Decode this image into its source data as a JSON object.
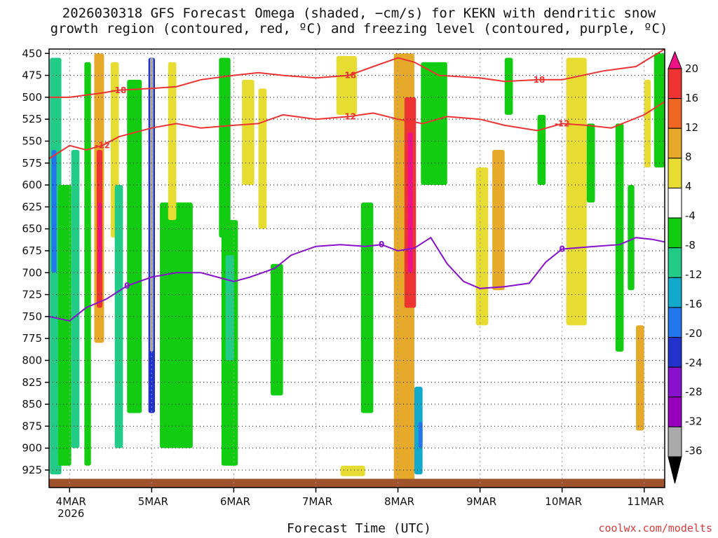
{
  "title": {
    "line1": "2026030318 GFS Forecast Omega (shaded, −cm/s) for KEKN with dendritic snow",
    "line2": "growth region (contoured, red, ºC) and freezing level (contoured, purple, ºC)"
  },
  "xlabel": "Forecast Time (UTC)",
  "credit": "coolwx.com/modelts",
  "chart_data": {
    "type": "heatmap",
    "title": "2026030318 GFS Forecast Omega (shaded, −cm/s) for KEKN",
    "x_axis": {
      "range_days": [
        3.75,
        11.25
      ],
      "ticks": [
        {
          "day": 4,
          "label": "4MAR",
          "sub": "2026"
        },
        {
          "day": 5,
          "label": "5MAR",
          "sub": ""
        },
        {
          "day": 6,
          "label": "6MAR",
          "sub": ""
        },
        {
          "day": 7,
          "label": "7MAR",
          "sub": ""
        },
        {
          "day": 8,
          "label": "8MAR",
          "sub": ""
        },
        {
          "day": 9,
          "label": "9MAR",
          "sub": ""
        },
        {
          "day": 10,
          "label": "10MAR",
          "sub": ""
        },
        {
          "day": 11,
          "label": "11MAR",
          "sub": ""
        }
      ]
    },
    "y_axis": {
      "label": "",
      "range_hpa": [
        445,
        945
      ],
      "ticks": [
        450,
        475,
        500,
        525,
        550,
        575,
        600,
        625,
        650,
        675,
        700,
        725,
        750,
        775,
        800,
        825,
        850,
        875,
        900,
        925
      ]
    },
    "grid": true,
    "colorbar": {
      "labels": [
        20,
        16,
        12,
        8,
        4,
        -4,
        -8,
        -12,
        -16,
        -20,
        -24,
        -28,
        -32,
        -36
      ],
      "bands": [
        {
          "from": 20,
          "to": 24,
          "color": "#ee1188"
        },
        {
          "from": 16,
          "to": 20,
          "color": "#ee3333"
        },
        {
          "from": 12,
          "to": 16,
          "color": "#ee6622"
        },
        {
          "from": 8,
          "to": 12,
          "color": "#e6a92a"
        },
        {
          "from": 4,
          "to": 8,
          "color": "#e6dc32"
        },
        {
          "from": -4,
          "to": 4,
          "color": "#ffffff"
        },
        {
          "from": -8,
          "to": -4,
          "color": "#11cc11"
        },
        {
          "from": -12,
          "to": -8,
          "color": "#22cc88"
        },
        {
          "from": -16,
          "to": -12,
          "color": "#11aacc"
        },
        {
          "from": -20,
          "to": -16,
          "color": "#2277ee"
        },
        {
          "from": -24,
          "to": -20,
          "color": "#2233cc"
        },
        {
          "from": -28,
          "to": -24,
          "color": "#8811cc"
        },
        {
          "from": -32,
          "to": -28,
          "color": "#9900bb"
        },
        {
          "from": -36,
          "to": -32,
          "color": "#aaaaaa"
        },
        {
          "from": -40,
          "to": -36,
          "color": "#000000"
        }
      ]
    },
    "omega_features": [
      {
        "day": [
          3.76,
          3.9
        ],
        "p": [
          455,
          930
        ],
        "value": -12
      },
      {
        "day": [
          3.78,
          3.84
        ],
        "p": [
          560,
          700
        ],
        "value": -20
      },
      {
        "day": [
          3.86,
          4.02
        ],
        "p": [
          600,
          920
        ],
        "value": -8
      },
      {
        "day": [
          4.02,
          4.12
        ],
        "p": [
          560,
          900
        ],
        "value": -12
      },
      {
        "day": [
          4.3,
          4.42
        ],
        "p": [
          450,
          780
        ],
        "value": 8
      },
      {
        "day": [
          4.33,
          4.4
        ],
        "p": [
          560,
          740
        ],
        "value": 16
      },
      {
        "day": [
          4.35,
          4.39
        ],
        "p": [
          620,
          700
        ],
        "value": 20
      },
      {
        "day": [
          4.18,
          4.26
        ],
        "p": [
          460,
          920
        ],
        "value": -8
      },
      {
        "day": [
          4.5,
          4.6
        ],
        "p": [
          460,
          660
        ],
        "value": 4
      },
      {
        "day": [
          4.55,
          4.65
        ],
        "p": [
          600,
          900
        ],
        "value": -12
      },
      {
        "day": [
          4.7,
          4.88
        ],
        "p": [
          480,
          860
        ],
        "value": -8
      },
      {
        "day": [
          4.96,
          5.04
        ],
        "p": [
          455,
          860
        ],
        "value": -24
      },
      {
        "day": [
          4.98,
          5.02
        ],
        "p": [
          455,
          790
        ],
        "value": -36
      },
      {
        "day": [
          5.1,
          5.5
        ],
        "p": [
          620,
          900
        ],
        "value": -8
      },
      {
        "day": [
          5.2,
          5.3
        ],
        "p": [
          460,
          640
        ],
        "value": 4
      },
      {
        "day": [
          5.82,
          5.96
        ],
        "p": [
          455,
          660
        ],
        "value": -8
      },
      {
        "day": [
          5.85,
          6.05
        ],
        "p": [
          640,
          920
        ],
        "value": -8
      },
      {
        "day": [
          5.9,
          6.0
        ],
        "p": [
          680,
          800
        ],
        "value": -12
      },
      {
        "day": [
          6.1,
          6.25
        ],
        "p": [
          480,
          600
        ],
        "value": 4
      },
      {
        "day": [
          6.3,
          6.4
        ],
        "p": [
          490,
          650
        ],
        "value": 4
      },
      {
        "day": [
          6.45,
          6.6
        ],
        "p": [
          690,
          840
        ],
        "value": -8
      },
      {
        "day": [
          7.25,
          7.5
        ],
        "p": [
          453,
          520
        ],
        "value": 4
      },
      {
        "day": [
          7.3,
          7.6
        ],
        "p": [
          920,
          932
        ],
        "value": 4
      },
      {
        "day": [
          7.55,
          7.7
        ],
        "p": [
          620,
          860
        ],
        "value": -8
      },
      {
        "day": [
          7.95,
          8.2
        ],
        "p": [
          450,
          940
        ],
        "value": 8
      },
      {
        "day": [
          8.08,
          8.22
        ],
        "p": [
          500,
          740
        ],
        "value": 16
      },
      {
        "day": [
          8.12,
          8.18
        ],
        "p": [
          540,
          700
        ],
        "value": 20
      },
      {
        "day": [
          8.28,
          8.6
        ],
        "p": [
          460,
          600
        ],
        "value": -8
      },
      {
        "day": [
          8.2,
          8.3
        ],
        "p": [
          830,
          930
        ],
        "value": -16
      },
      {
        "day": [
          8.25,
          8.3
        ],
        "p": [
          870,
          900
        ],
        "value": -20
      },
      {
        "day": [
          8.95,
          9.1
        ],
        "p": [
          580,
          760
        ],
        "value": 4
      },
      {
        "day": [
          9.15,
          9.3
        ],
        "p": [
          560,
          720
        ],
        "value": 8
      },
      {
        "day": [
          9.3,
          9.4
        ],
        "p": [
          455,
          520
        ],
        "value": -8
      },
      {
        "day": [
          9.7,
          9.8
        ],
        "p": [
          520,
          600
        ],
        "value": -8
      },
      {
        "day": [
          10.05,
          10.3
        ],
        "p": [
          455,
          760
        ],
        "value": 4
      },
      {
        "day": [
          10.3,
          10.4
        ],
        "p": [
          530,
          620
        ],
        "value": -8
      },
      {
        "day": [
          10.65,
          10.75
        ],
        "p": [
          530,
          790
        ],
        "value": -8
      },
      {
        "day": [
          10.8,
          10.88
        ],
        "p": [
          600,
          720
        ],
        "value": -8
      },
      {
        "day": [
          10.9,
          11.0
        ],
        "p": [
          760,
          880
        ],
        "value": 8
      },
      {
        "day": [
          11.0,
          11.08
        ],
        "p": [
          480,
          580
        ],
        "value": 4
      },
      {
        "day": [
          11.12,
          11.25
        ],
        "p": [
          450,
          580
        ],
        "value": -8
      }
    ],
    "contours": [
      {
        "label": "-18",
        "color": "#ee3333",
        "x": [
          3.75,
          4.0,
          4.4,
          4.6,
          5.0,
          5.3,
          5.6,
          6.0,
          6.3,
          6.6,
          7.0,
          7.4,
          7.7,
          8.0,
          8.2,
          8.5,
          9.0,
          9.3,
          9.7,
          10.0,
          10.5,
          10.9,
          11.25
        ],
        "y": [
          500,
          500,
          495,
          492,
          490,
          488,
          480,
          475,
          472,
          475,
          478,
          475,
          465,
          455,
          460,
          475,
          478,
          482,
          480,
          480,
          470,
          465,
          445
        ]
      },
      {
        "label": "-12",
        "color": "#ee3333",
        "x": [
          3.75,
          4.0,
          4.2,
          4.4,
          4.6,
          5.0,
          5.3,
          5.6,
          6.0,
          6.3,
          6.6,
          7.0,
          7.4,
          7.7,
          8.0,
          8.3,
          8.6,
          9.0,
          9.3,
          9.7,
          10.0,
          10.3,
          10.6,
          11.0,
          11.25
        ],
        "y": [
          570,
          555,
          560,
          555,
          545,
          535,
          530,
          535,
          532,
          530,
          520,
          525,
          522,
          518,
          525,
          530,
          522,
          525,
          532,
          538,
          530,
          532,
          535,
          520,
          505
        ]
      },
      {
        "label": "0",
        "color": "#8811cc",
        "x": [
          3.75,
          4.0,
          4.2,
          4.45,
          4.7,
          5.0,
          5.3,
          5.6,
          6.0,
          6.2,
          6.5,
          6.7,
          7.0,
          7.3,
          7.6,
          7.8,
          8.0,
          8.2,
          8.4,
          8.6,
          8.8,
          9.0,
          9.3,
          9.6,
          9.8,
          10.0,
          10.4,
          10.7,
          10.9,
          11.1,
          11.25
        ],
        "y": [
          750,
          755,
          740,
          730,
          715,
          705,
          700,
          700,
          710,
          705,
          695,
          680,
          670,
          668,
          670,
          668,
          675,
          672,
          660,
          690,
          710,
          718,
          716,
          712,
          688,
          673,
          670,
          668,
          660,
          662,
          665
        ]
      }
    ],
    "terrain": {
      "color": "#a0522d",
      "p_top": 935
    }
  }
}
